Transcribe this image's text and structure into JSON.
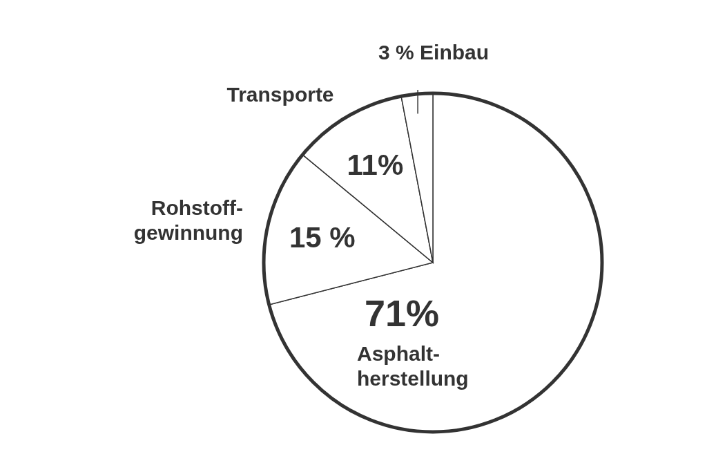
{
  "chart_data": {
    "type": "pie",
    "categories": [
      "Asphalt-\nherstellung",
      "Rohstoff-\ngewinnung",
      "Transporte",
      "Einbau"
    ],
    "values": [
      71,
      15,
      11,
      3
    ],
    "colors": [
      "#ffffff",
      "#ffffff",
      "#ffffff",
      "#ffffff"
    ],
    "value_labels": [
      "71%",
      "15 %",
      "11%",
      "3 %"
    ]
  }
}
